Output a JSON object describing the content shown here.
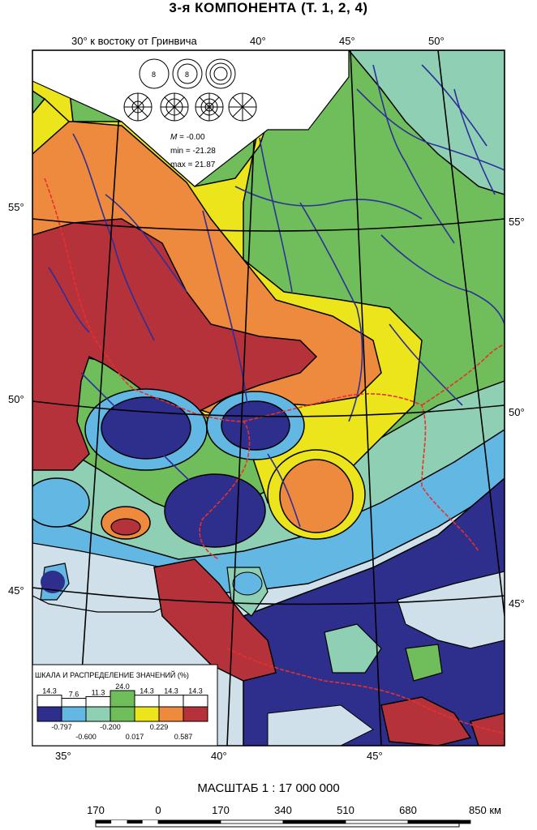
{
  "title": "3-я КОМПОНЕНТА (Т. 1, 2, 4)",
  "longitude_note": "30° к востоку от Гринвича",
  "grid_labels": {
    "top_40": "40°",
    "top_45": "45°",
    "top_50": "50°",
    "left_55": "55°",
    "left_50": "50°",
    "left_45": "45°",
    "right_55": "55°",
    "right_50": "50°",
    "right_45": "45°",
    "bottom_35": "35°",
    "bottom_40": "40°",
    "bottom_45": "45°"
  },
  "stats": {
    "m": "-0.00",
    "m_symbol": "M",
    "m_rest": " = -0.00",
    "min": "min = -21.28",
    "max": "max = 21.87"
  },
  "legend": {
    "title": "ШКАЛА И РАСПРЕДЕЛЕНИЕ ЗНАЧЕНИЙ (%)",
    "classes": [
      {
        "color": "#2e2e8c",
        "percent": "14.3"
      },
      {
        "color": "#62b8e3",
        "percent": "7.6"
      },
      {
        "color": "#8fd0b5",
        "percent": "11.3"
      },
      {
        "color": "#6fbe5b",
        "percent": "24.0"
      },
      {
        "color": "#ece51b",
        "percent": "14.3"
      },
      {
        "color": "#ee8a3d",
        "percent": "14.3"
      },
      {
        "color": "#b5323a",
        "percent": "14.3"
      }
    ],
    "breaks_top": [
      "-0.797",
      "-0.200",
      "0.229"
    ],
    "breaks_bottom": [
      "-0.600",
      "0.017",
      "0.587"
    ]
  },
  "scale": {
    "title": "МАСШТАБ 1 : 17 000 000",
    "ticks": [
      "170",
      "0",
      "170",
      "340",
      "510",
      "680",
      "850 км"
    ]
  },
  "colors": {
    "sea": "#cfe0ea",
    "land_white": "#ffffff",
    "river": "#2d2f9a",
    "border": "#e8302a",
    "dark_blue": "#2e2e8c",
    "light_blue": "#62b8e3",
    "teal": "#8fd0b5",
    "green": "#6fbe5b",
    "yellow": "#ece51b",
    "orange": "#ee8a3d",
    "red": "#b5323a"
  }
}
